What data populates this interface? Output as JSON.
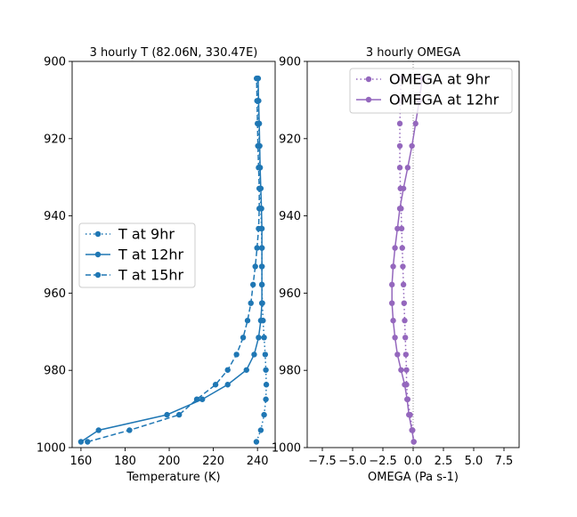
{
  "chart_data": [
    {
      "type": "line",
      "title": "3 hourly T (82.06N, 330.47E)",
      "xlabel": "Temperature (K)",
      "ylabel": "",
      "xlim": [
        156,
        248
      ],
      "ylim": [
        1000,
        900
      ],
      "xticks": [
        160,
        180,
        200,
        220,
        240
      ],
      "yticks": [
        900,
        920,
        940,
        960,
        980,
        1000
      ],
      "color": "#1f77b4",
      "legend_position": "center-left",
      "y": [
        998.5,
        995.5,
        991.5,
        987.5,
        983.7,
        979.9,
        975.9,
        971.5,
        967.1,
        962.6,
        957.8,
        953.1,
        948.3,
        943.3,
        938.1,
        932.9,
        927.5,
        921.9,
        916.1,
        910.2,
        904.4
      ],
      "series": [
        {
          "name": "T at 9hr",
          "style": "dotted",
          "values": [
            239.5,
            241.5,
            243.0,
            243.8,
            244.0,
            243.8,
            243.5,
            243.0,
            242.5,
            242.2,
            242.0,
            242.0,
            242.0,
            241.8,
            241.5,
            241.2,
            241.0,
            240.8,
            240.5,
            240.2,
            240.0
          ]
        },
        {
          "name": "T at 12hr",
          "style": "solid",
          "values": [
            160.0,
            168.0,
            199.0,
            215.0,
            226.5,
            235.0,
            238.5,
            240.5,
            241.5,
            242.0,
            242.0,
            242.0,
            242.0,
            242.0,
            241.8,
            241.5,
            241.2,
            241.0,
            240.8,
            240.5,
            240.3
          ]
        },
        {
          "name": "T at 15hr",
          "style": "dashed",
          "values": [
            163.0,
            182.0,
            204.5,
            212.5,
            221.0,
            226.5,
            230.5,
            233.5,
            235.5,
            237.0,
            238.0,
            239.0,
            239.8,
            240.5,
            240.8,
            240.8,
            240.5,
            240.2,
            240.0,
            239.8,
            239.6
          ]
        }
      ]
    },
    {
      "type": "line",
      "title": "3 hourly OMEGA",
      "xlabel": "OMEGA (Pa s-1)",
      "ylabel": "",
      "xlim": [
        -8.75,
        8.75
      ],
      "ylim": [
        1000,
        900
      ],
      "xticks": [
        -7.5,
        -5.0,
        -2.5,
        0.0,
        2.5,
        5.0,
        7.5
      ],
      "xtick_labels": [
        "−7.5",
        "−5.0",
        "−2.5",
        "0.0",
        "2.5",
        "5.0",
        "7.5"
      ],
      "yticks": [
        900,
        920,
        940,
        960,
        980,
        1000
      ],
      "color": "#9467bd",
      "zero_line": 0,
      "legend_position": "top-right",
      "y": [
        998.5,
        995.5,
        991.5,
        987.5,
        983.7,
        979.9,
        975.9,
        971.5,
        967.1,
        962.6,
        957.8,
        953.1,
        948.3,
        943.3,
        938.1,
        932.9,
        927.5,
        921.9,
        916.1,
        910.2,
        904.4
      ],
      "series": [
        {
          "name": "OMEGA at 9hr",
          "style": "dotted",
          "values": [
            0.05,
            -0.05,
            -0.25,
            -0.45,
            -0.55,
            -0.55,
            -0.6,
            -0.65,
            -0.7,
            -0.75,
            -0.8,
            -0.85,
            -0.9,
            -0.95,
            -1.0,
            -1.05,
            -1.1,
            -1.1,
            -1.1,
            -1.05,
            -1.0
          ]
        },
        {
          "name": "OMEGA at 12hr",
          "style": "solid",
          "values": [
            0.05,
            -0.1,
            -0.35,
            -0.5,
            -0.7,
            -1.0,
            -1.3,
            -1.5,
            -1.65,
            -1.75,
            -1.75,
            -1.65,
            -1.5,
            -1.3,
            -1.1,
            -0.8,
            -0.45,
            -0.1,
            0.2,
            0.5,
            0.75
          ]
        }
      ]
    }
  ]
}
